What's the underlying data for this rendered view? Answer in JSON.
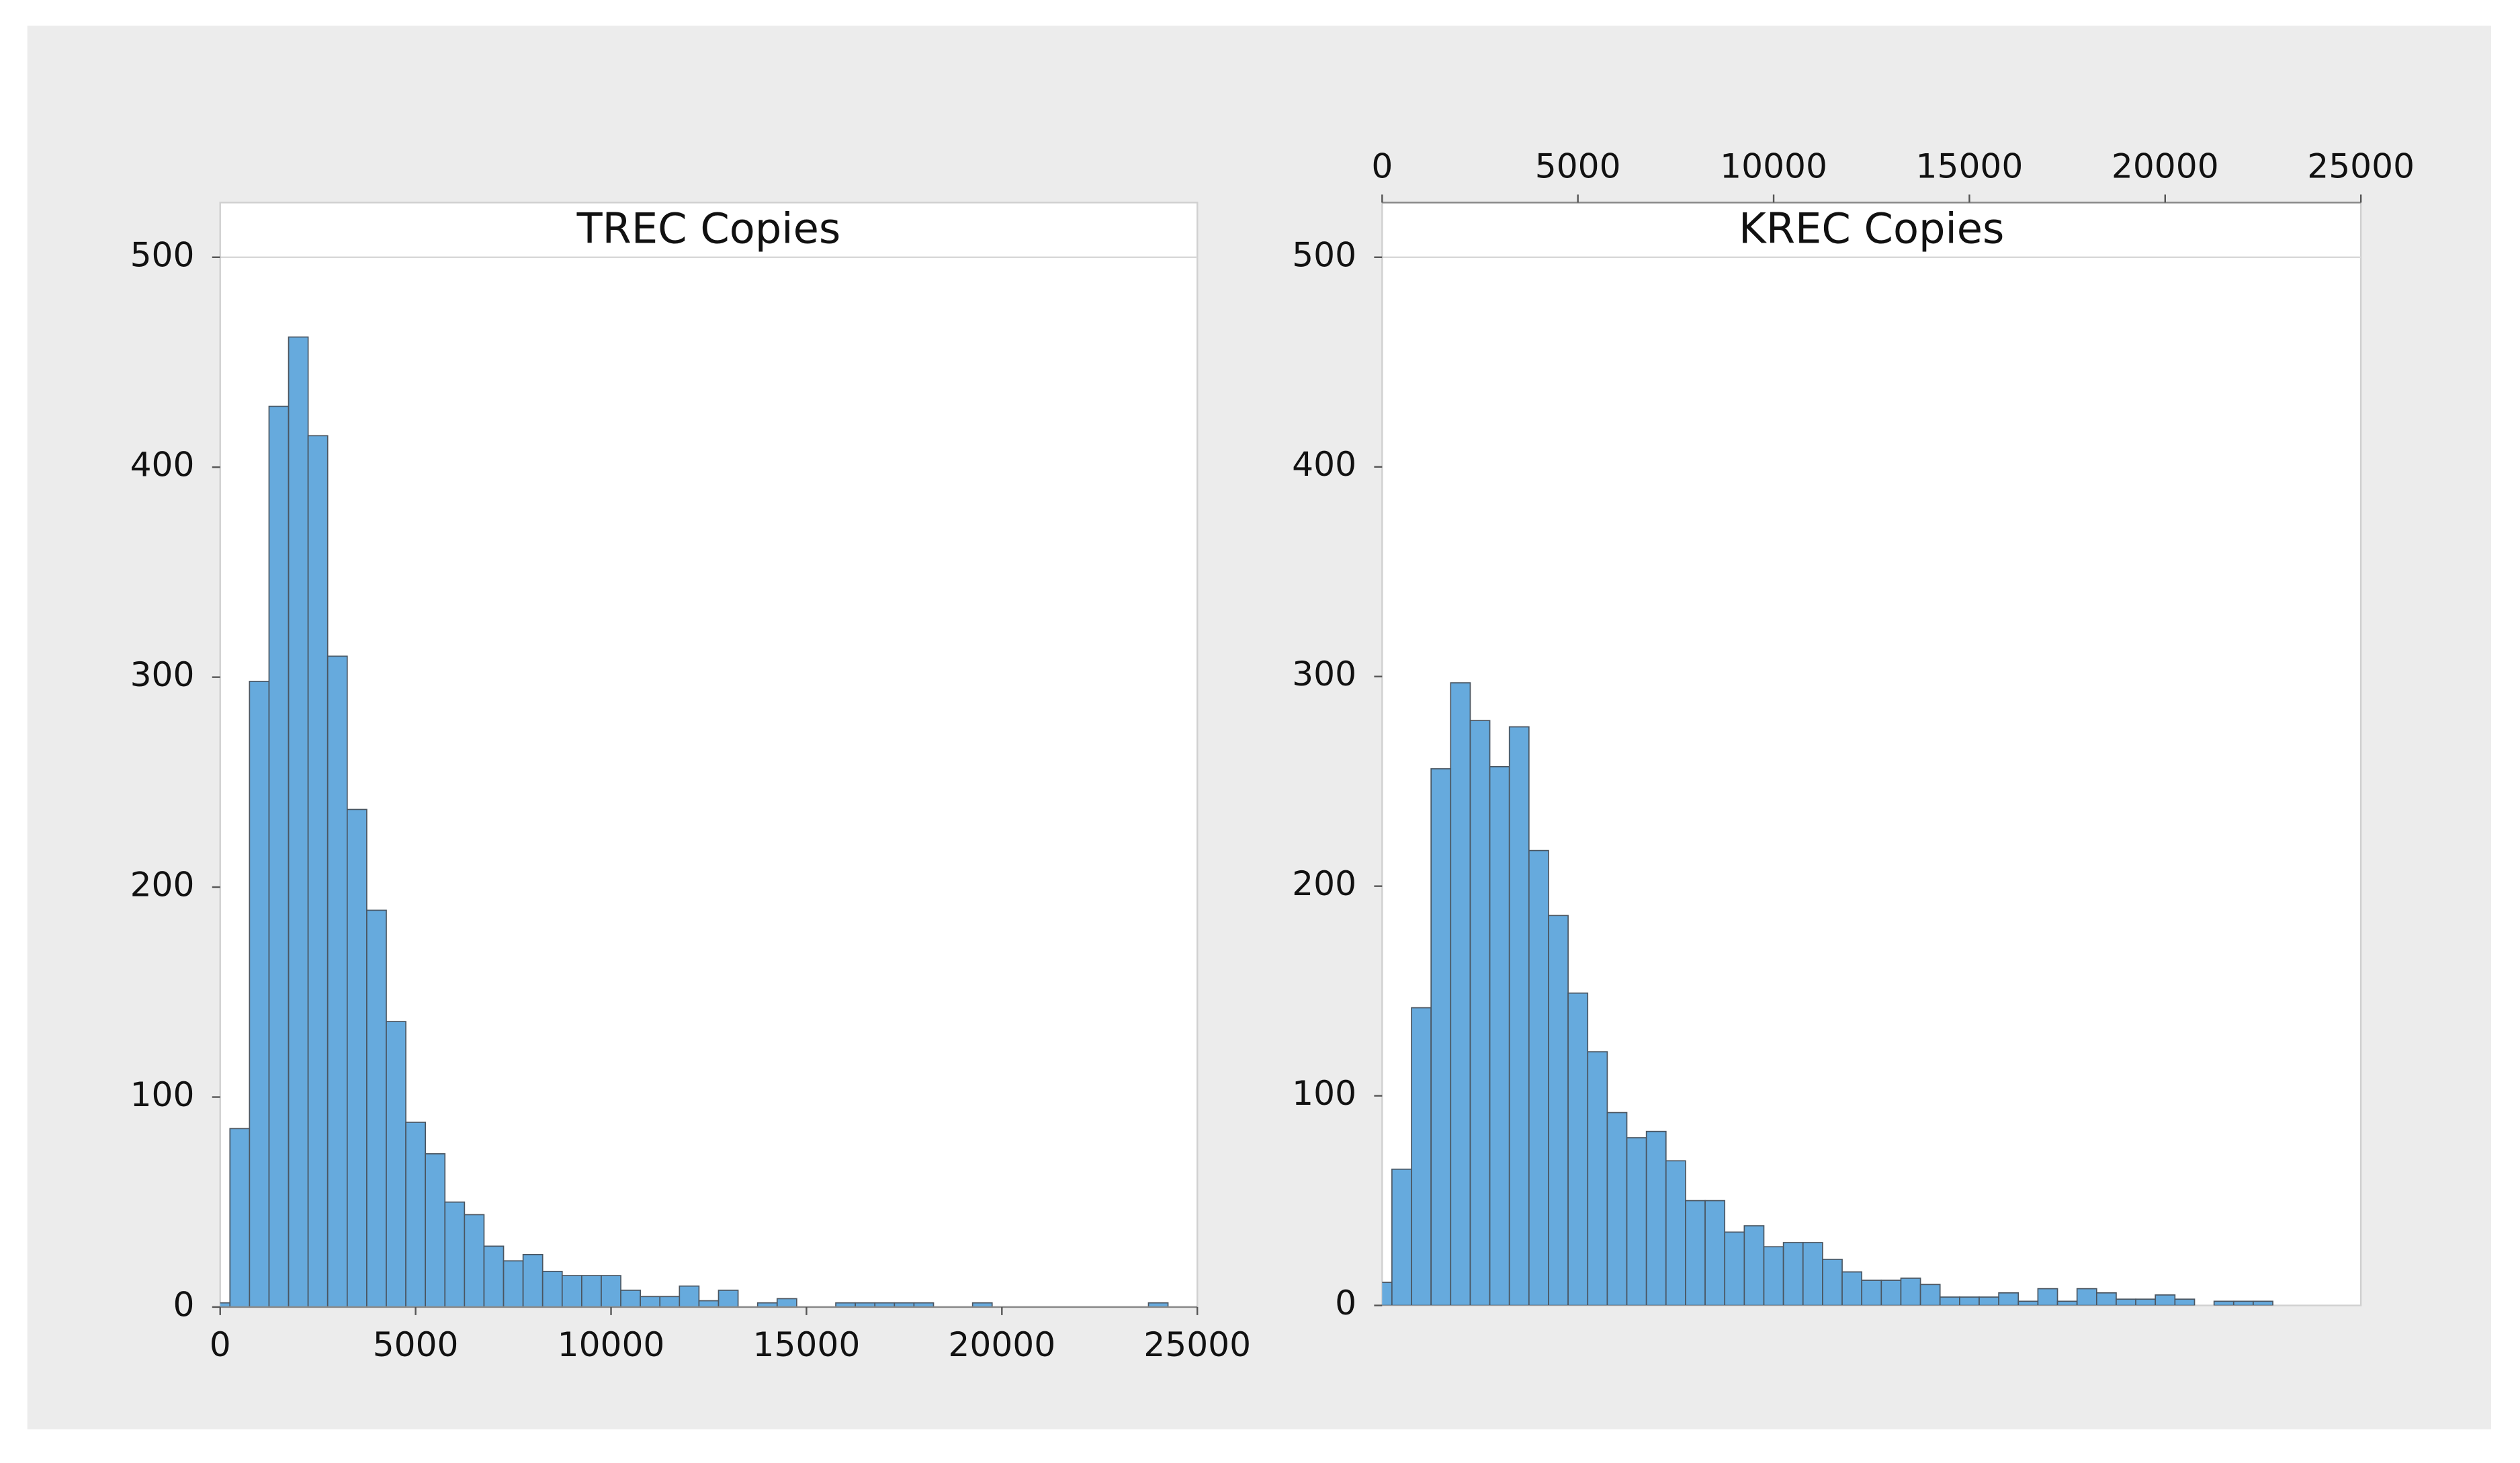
{
  "chart_data": [
    {
      "type": "histogram",
      "title": "TREC Copies",
      "color": "#66aadd",
      "edge_color": "#4a5560",
      "xaxis_position": "bottom",
      "bins": [
        -250,
        250,
        750,
        1250,
        1750,
        2250,
        2750,
        3250,
        3750,
        4250,
        4750,
        5250,
        5750,
        6250,
        6750,
        7250,
        7750,
        8250,
        8750,
        9250,
        9750,
        10250,
        10750,
        11250,
        11750,
        12250,
        12750,
        13250,
        13750,
        14250,
        14750,
        15250,
        15750,
        16250,
        16750,
        17250,
        17750,
        18250,
        18750,
        19250,
        19750,
        20250,
        20750,
        21250,
        21750,
        22250,
        22750,
        23250,
        23750,
        24250
      ],
      "values": [
        2,
        85,
        298,
        429,
        462,
        415,
        310,
        237,
        189,
        136,
        88,
        73,
        50,
        44,
        29,
        22,
        25,
        17,
        15,
        15,
        15,
        8,
        5,
        5,
        10,
        3,
        8,
        0,
        2,
        4,
        0,
        0,
        2,
        2,
        2,
        2,
        2,
        0,
        0,
        2,
        0,
        0,
        0,
        0,
        0,
        0,
        0,
        0,
        2
      ],
      "xlim": [
        0,
        25000
      ],
      "xticks": [
        0,
        5000,
        10000,
        15000,
        20000,
        25000
      ],
      "ylim": [
        0,
        500
      ],
      "yticks": [
        0,
        100,
        200,
        300,
        400,
        500
      ]
    },
    {
      "type": "histogram",
      "title": "KREC Copies",
      "color": "#66aadd",
      "edge_color": "#4a5560",
      "xaxis_position": "top",
      "bins": [
        -250,
        250,
        750,
        1250,
        1750,
        2250,
        2750,
        3250,
        3750,
        4250,
        4750,
        5250,
        5750,
        6250,
        6750,
        7250,
        7750,
        8250,
        8750,
        9250,
        9750,
        10250,
        10750,
        11250,
        11750,
        12250,
        12750,
        13250,
        13750,
        14250,
        14750,
        15250,
        15750,
        16250,
        16750,
        17250,
        17750,
        18250,
        18750,
        19250,
        19750,
        20250,
        20750,
        21250,
        21750,
        22250,
        22750
      ],
      "values": [
        11,
        65,
        142,
        256,
        297,
        279,
        257,
        276,
        217,
        186,
        149,
        121,
        92,
        80,
        83,
        69,
        50,
        50,
        35,
        38,
        28,
        30,
        30,
        22,
        16,
        12,
        12,
        13,
        10,
        4,
        4,
        4,
        6,
        2,
        8,
        2,
        8,
        6,
        3,
        3,
        5,
        3,
        0,
        2,
        2,
        2
      ],
      "xlim": [
        0,
        25000
      ],
      "xticks": [
        0,
        5000,
        10000,
        15000,
        20000,
        25000
      ],
      "ylim": [
        0,
        500
      ],
      "yticks": [
        0,
        100,
        200,
        300,
        400,
        500
      ]
    }
  ]
}
